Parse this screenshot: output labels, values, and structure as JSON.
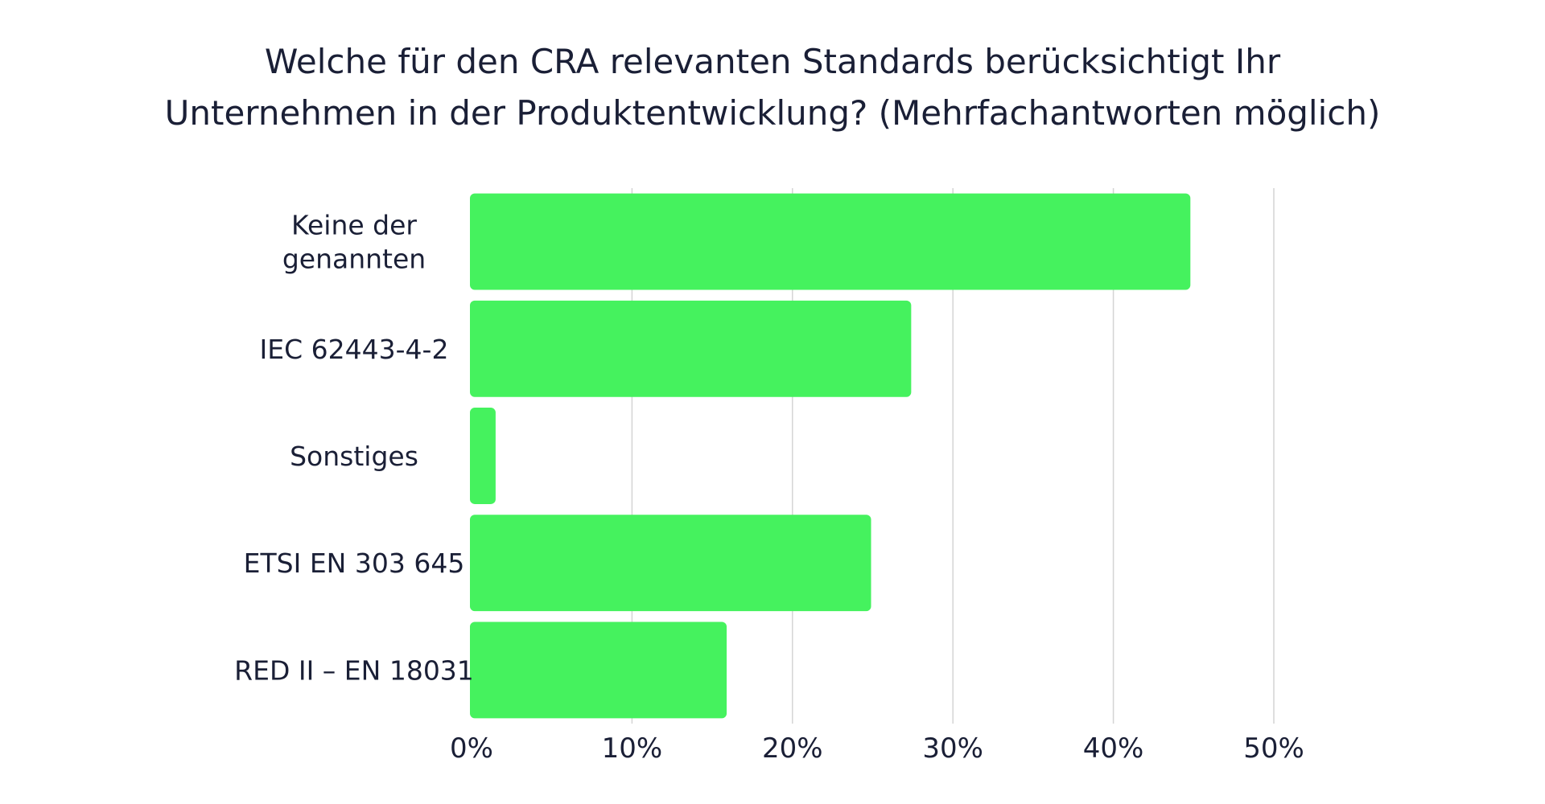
{
  "chart_data": {
    "type": "bar",
    "orientation": "horizontal",
    "title_lines": [
      "Welche für den CRA relevanten Standards berücksichtigt Ihr",
      "Unternehmen in der Produktentwicklung? (Mehrfachantworten möglich)"
    ],
    "categories": [
      [
        "Keine der",
        "genannten"
      ],
      [
        "IEC 62443-4-2"
      ],
      [
        "Sonstiges"
      ],
      [
        "ETSI EN 303 645"
      ],
      [
        "RED II – EN 18031"
      ]
    ],
    "values": [
      44.8,
      27.4,
      1.5,
      24.9,
      15.9
    ],
    "xlim": [
      0,
      50
    ],
    "xticks": [
      0,
      10,
      20,
      30,
      40,
      50
    ],
    "tick_labels": [
      "0%",
      "10%",
      "20%",
      "30%",
      "40%",
      "50%"
    ],
    "xlabel": "",
    "ylabel": "",
    "grid": true,
    "bar_color": "#45f25e",
    "text_color": "#1a1f36"
  }
}
